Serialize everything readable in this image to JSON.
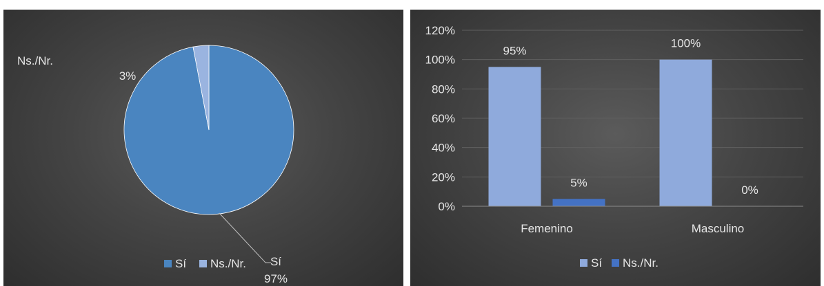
{
  "colors": {
    "si": "#4a85c0",
    "ns": "#9ab4e0",
    "bar_si": "#8faadc",
    "bar_ns": "#4472c4"
  },
  "chart_data": [
    {
      "type": "pie",
      "slices": [
        {
          "label": "Sí",
          "value": 97,
          "label_text": "Sí",
          "value_text": "97%"
        },
        {
          "label": "Ns./Nr.",
          "value": 3,
          "label_text": "Ns./Nr.",
          "value_text": "3%"
        }
      ],
      "legend": {
        "placement": "bottom",
        "entries": [
          "Sí",
          "Ns./Nr."
        ]
      }
    },
    {
      "type": "bar",
      "categories": [
        "Femenino",
        "Masculino"
      ],
      "series": [
        {
          "name": "Sí",
          "values": [
            95,
            100
          ]
        },
        {
          "name": "Ns./Nr.",
          "values": [
            5,
            0
          ]
        }
      ],
      "data_labels": [
        [
          "95%",
          "100%"
        ],
        [
          "5%",
          "0%"
        ]
      ],
      "ylim": [
        0,
        120
      ],
      "yticks": [
        "0%",
        "20%",
        "40%",
        "60%",
        "80%",
        "100%",
        "120%"
      ],
      "grid": true,
      "legend": {
        "placement": "bottom",
        "entries": [
          "Sí",
          "Ns./Nr."
        ]
      }
    }
  ]
}
